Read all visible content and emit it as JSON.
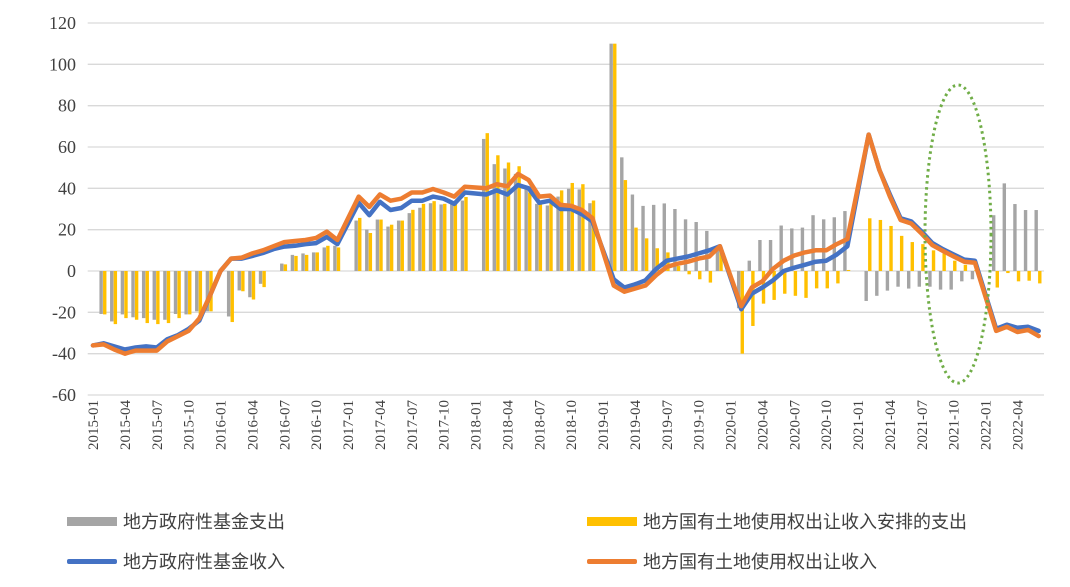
{
  "chart_data": {
    "type": "bar+line",
    "title": "",
    "xlabel": "",
    "ylabel": "",
    "ylim": [
      -60,
      120
    ],
    "yticks": [
      -60,
      -40,
      -20,
      0,
      20,
      40,
      60,
      80,
      100,
      120
    ],
    "x_start": "2015-01",
    "x_end": "2022-06",
    "frequency": "monthly",
    "tick_labels": [
      "2015-01",
      "2015-04",
      "2015-07",
      "2015-10",
      "2016-01",
      "2016-04",
      "2016-07",
      "2016-10",
      "2017-01",
      "2017-04",
      "2017-07",
      "2017-10",
      "2018-01",
      "2018-04",
      "2018-07",
      "2018-10",
      "2019-01",
      "2019-04",
      "2019-07",
      "2019-10",
      "2020-01",
      "2020-04",
      "2020-07",
      "2020-10",
      "2021-01",
      "2021-04",
      "2021-07",
      "2021-10",
      "2022-01",
      "2022-04"
    ],
    "grid": true,
    "legend_position": "bottom",
    "annotation": "dotted green ellipse around 2021-07 to 2021-12",
    "series": [
      {
        "name": "地方政府性基金支出",
        "kind": "bar",
        "color": "#a5a5a5",
        "values": [
          null,
          -20.8,
          -24.4,
          -21,
          -22.4,
          -22.8,
          -23.6,
          -23.6,
          -20.8,
          -21,
          -19.5,
          -19.5,
          null,
          -22,
          -9.4,
          -12.7,
          -6.2,
          null,
          3.6,
          7.8,
          8.5,
          9,
          11.4,
          12.2,
          null,
          24.4,
          20,
          24.9,
          21.5,
          24.4,
          28,
          30.6,
          32.8,
          32.2,
          33,
          34.1,
          null,
          63.9,
          51.7,
          49.6,
          47,
          40.6,
          32.5,
          31.7,
          36,
          39.8,
          39.5,
          32.8,
          null,
          110,
          55,
          37,
          31.5,
          32,
          32.7,
          30,
          25,
          23.7,
          19.4,
          12,
          null,
          -18,
          5,
          15,
          15,
          22,
          20.6,
          21,
          27,
          25,
          26,
          29,
          null,
          -14.5,
          -12,
          -9.5,
          -7.6,
          -8.5,
          -7.6,
          -7.6,
          -9,
          -9,
          -5,
          -4,
          null,
          27,
          42.4,
          32.4,
          29.5,
          29.5
        ]
      },
      {
        "name": "地方国有土地使用权出让收入安排的支出",
        "kind": "bar",
        "color": "#ffc000",
        "values": [
          null,
          -21,
          -25.7,
          -22.8,
          -23.6,
          -25.2,
          -25.7,
          -25.2,
          -22.8,
          -21,
          -20.8,
          -19.5,
          null,
          -24.7,
          -9.8,
          -13.8,
          -7.8,
          null,
          3.2,
          7.3,
          7.8,
          9,
          12.2,
          11.4,
          null,
          25.7,
          18.4,
          24.9,
          22.4,
          24.4,
          29.6,
          32.5,
          33.8,
          32.5,
          33,
          35.8,
          null,
          66.7,
          56,
          52.5,
          50.7,
          38,
          34,
          35,
          39,
          42.6,
          42,
          34.1,
          null,
          110,
          44,
          21,
          15.8,
          11,
          9,
          2.4,
          -1.6,
          -4,
          -5.6,
          11,
          null,
          -40,
          -26.6,
          -15.8,
          -14,
          -11,
          -12,
          -13,
          -8.4,
          -8.4,
          -6,
          0.5,
          null,
          25.5,
          24.7,
          21.8,
          17,
          14,
          13,
          10,
          8.5,
          5,
          3,
          0.5,
          null,
          -8,
          -1,
          -5,
          -4.7,
          -6
        ]
      },
      {
        "name": "地方政府性基金收入",
        "kind": "line",
        "color": "#4472c4",
        "values": [
          -36,
          -35,
          -36.5,
          -38,
          -37,
          -36.5,
          -37,
          -33,
          -31,
          -28,
          -24,
          -12,
          0,
          6,
          6,
          7.3,
          8.7,
          10.6,
          11.8,
          12.2,
          13,
          13.5,
          16.5,
          13,
          null,
          33,
          27,
          33.5,
          29.5,
          30.5,
          34,
          34,
          36,
          35,
          32.5,
          38,
          null,
          37,
          39,
          37,
          41.6,
          40,
          33,
          34,
          30,
          30,
          27.5,
          24,
          null,
          -4,
          -8,
          -6.5,
          -4.5,
          1,
          5,
          6,
          7,
          8.5,
          10,
          12,
          null,
          -18.5,
          -11,
          -8,
          -4.5,
          0,
          1.6,
          3,
          4.5,
          5,
          8,
          12,
          null,
          66,
          49,
          37,
          25.5,
          24,
          19,
          13.5,
          10.5,
          8,
          5.5,
          5,
          null,
          -28,
          -26,
          -27.5,
          -27,
          -29
        ]
      },
      {
        "name": "地方国有土地使用权出让收入",
        "kind": "line",
        "color": "#ed7d31",
        "values": [
          -36,
          -35.5,
          -38,
          -40,
          -38.5,
          -38.5,
          -38.5,
          -34,
          -31.5,
          -29,
          -23,
          -12,
          0,
          6,
          6.5,
          8.5,
          10,
          12,
          14,
          14.5,
          15,
          16,
          19,
          15,
          null,
          36,
          31,
          37,
          34,
          35,
          38,
          38,
          39.7,
          38,
          36,
          40.8,
          null,
          40,
          42,
          41,
          47,
          44,
          36,
          36.5,
          32,
          31.5,
          29.5,
          25.6,
          null,
          -7,
          -10,
          -8.5,
          -7,
          -2,
          2,
          3.5,
          4.5,
          6,
          7,
          12,
          null,
          -17,
          -8,
          -5,
          1,
          5,
          7.5,
          9,
          10,
          10,
          13,
          15.5,
          null,
          66,
          49,
          36,
          24.7,
          23,
          18,
          12.5,
          9.7,
          7,
          4.5,
          4,
          null,
          -29,
          -27,
          -29.5,
          -28.5,
          -31.5
        ]
      }
    ]
  },
  "legend": {
    "items": [
      "地方政府性基金支出",
      "地方国有土地使用权出让收入安排的支出",
      "地方政府性基金收入",
      "地方国有土地使用权出让收入"
    ]
  }
}
